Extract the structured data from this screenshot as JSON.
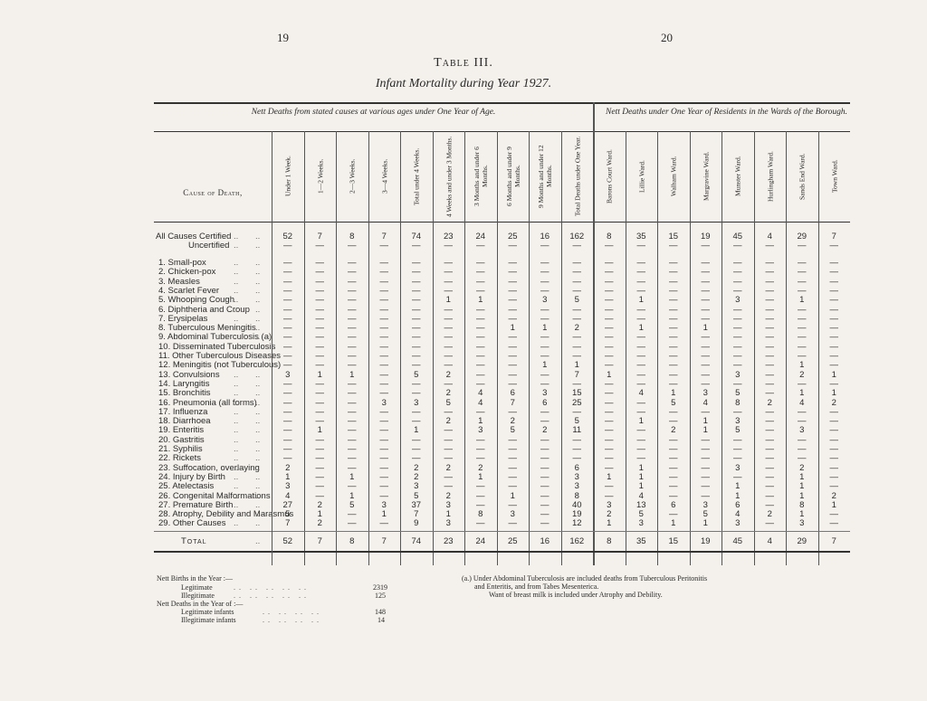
{
  "header": {
    "page_left": "19",
    "page_right": "20",
    "title": "Table III.",
    "subtitle": "Infant Mortality during Year 1927."
  },
  "table": {
    "group_left": "Nett Deaths from stated causes at various ages under One Year of Age.",
    "group_right": "Nett Deaths under One Year of Residents in the Wards of the Borough.",
    "cause_header": "Cause of Death,",
    "columns": [
      "Under 1 Week.",
      "1—2 Weeks.",
      "2—3 Weeks.",
      "3—4 Weeks.",
      "Total under 4 Weeks.",
      "4 Weeks and under 3 Months.",
      "3 Months and under 6 Months.",
      "6 Months and under 9 Months.",
      "9 Months and under 12 Months.",
      "Total Deaths under One Year.",
      "Barons Court Ward.",
      "Lillie Ward.",
      "Walham Ward.",
      "Margravine Ward.",
      "Munster Ward.",
      "Hurlingham Ward.",
      "Sands End Ward.",
      "Town Ward."
    ],
    "rows": [
      {
        "cause": "All Causes Certified",
        "cells": [
          52,
          7,
          8,
          7,
          74,
          23,
          24,
          25,
          16,
          162,
          8,
          35,
          15,
          19,
          45,
          4,
          29,
          7
        ]
      },
      {
        "cause": "Uncertified",
        "cells": [
          "—",
          "—",
          "—",
          "—",
          "—",
          "—",
          "—",
          "—",
          "—",
          "—",
          "—",
          "—",
          "—",
          "—",
          "—",
          "—",
          "—",
          "—"
        ]
      },
      {
        "cause": "1. Small-pox",
        "cells": [
          "—",
          "—",
          "—",
          "—",
          "—",
          "—",
          "—",
          "—",
          "—",
          "—",
          "—",
          "—",
          "—",
          "—",
          "—",
          "—",
          "—",
          "—"
        ]
      },
      {
        "cause": "2. Chicken-pox",
        "cells": [
          "—",
          "—",
          "—",
          "—",
          "—",
          "—",
          "—",
          "—",
          "—",
          "—",
          "—",
          "—",
          "—",
          "—",
          "—",
          "—",
          "—",
          "—"
        ]
      },
      {
        "cause": "3. Measles",
        "cells": [
          "—",
          "—",
          "—",
          "—",
          "—",
          "—",
          "—",
          "—",
          "—",
          "—",
          "—",
          "—",
          "—",
          "—",
          "—",
          "—",
          "—",
          "—"
        ]
      },
      {
        "cause": "4. Scarlet Fever",
        "cells": [
          "—",
          "—",
          "—",
          "—",
          "—",
          "—",
          "—",
          "—",
          "—",
          "—",
          "—",
          "—",
          "—",
          "—",
          "—",
          "—",
          "—",
          "—"
        ]
      },
      {
        "cause": "5. Whooping Cough",
        "cells": [
          "—",
          "—",
          "—",
          "—",
          "—",
          1,
          1,
          "—",
          3,
          5,
          "—",
          1,
          "—",
          "—",
          3,
          "—",
          1,
          "—"
        ]
      },
      {
        "cause": "6. Diphtheria and Croup",
        "cells": [
          "—",
          "—",
          "—",
          "—",
          "—",
          "—",
          "—",
          "—",
          "—",
          "—",
          "—",
          "—",
          "—",
          "—",
          "—",
          "—",
          "—",
          "—"
        ]
      },
      {
        "cause": "7. Erysipelas",
        "cells": [
          "—",
          "—",
          "—",
          "—",
          "—",
          "—",
          "—",
          "—",
          "—",
          "—",
          "—",
          "—",
          "—",
          "—",
          "—",
          "—",
          "—",
          "—"
        ]
      },
      {
        "cause": "8. Tuberculous Meningitis",
        "cells": [
          "—",
          "—",
          "—",
          "—",
          "—",
          "—",
          "—",
          1,
          1,
          2,
          "—",
          1,
          "—",
          1,
          "—",
          "—",
          "—",
          "—"
        ]
      },
      {
        "cause": "9. Abdominal Tuberculosis (a)",
        "cells": [
          "—",
          "—",
          "—",
          "—",
          "—",
          "—",
          "—",
          "—",
          "—",
          "—",
          "—",
          "—",
          "—",
          "—",
          "—",
          "—",
          "—",
          "—"
        ]
      },
      {
        "cause": "10. Disseminated Tuberculosis",
        "cells": [
          "—",
          "—",
          "—",
          "—",
          "—",
          "—",
          "—",
          "—",
          "—",
          "—",
          "—",
          "—",
          "—",
          "—",
          "—",
          "—",
          "—",
          "—"
        ]
      },
      {
        "cause": "11. Other Tuberculous Diseases",
        "cells": [
          "—",
          "—",
          "—",
          "—",
          "—",
          "—",
          "—",
          "—",
          "—",
          "—",
          "—",
          "—",
          "—",
          "—",
          "—",
          "—",
          "—",
          "—"
        ]
      },
      {
        "cause": "12. Meningitis (not Tuberculous)",
        "cells": [
          "—",
          "—",
          "—",
          "—",
          "—",
          "—",
          "—",
          "—",
          1,
          1,
          "—",
          "—",
          "—",
          "—",
          "—",
          "—",
          1,
          "—"
        ]
      },
      {
        "cause": "13. Convulsions",
        "cells": [
          3,
          1,
          1,
          "—",
          5,
          2,
          "—",
          "—",
          "—",
          7,
          1,
          "—",
          "—",
          "—",
          3,
          "—",
          2,
          1
        ]
      },
      {
        "cause": "14. Laryngitis",
        "cells": [
          "—",
          "—",
          "—",
          "—",
          "—",
          "—",
          "—",
          "—",
          "—",
          "—",
          "—",
          "—",
          "—",
          "—",
          "—",
          "—",
          "—",
          "—"
        ]
      },
      {
        "cause": "15. Bronchitis",
        "cells": [
          "—",
          "—",
          "—",
          "—",
          "—",
          2,
          4,
          6,
          3,
          15,
          "—",
          4,
          1,
          3,
          5,
          "—",
          1,
          1
        ]
      },
      {
        "cause": "16. Pneumonia (all forms)",
        "cells": [
          "—",
          "—",
          "—",
          3,
          3,
          5,
          4,
          7,
          6,
          25,
          "—",
          "—",
          5,
          4,
          8,
          2,
          4,
          2
        ]
      },
      {
        "cause": "17. Influenza",
        "cells": [
          "—",
          "—",
          "—",
          "—",
          "—",
          "—",
          "—",
          "—",
          "—",
          "—",
          "—",
          "—",
          "—",
          "—",
          "—",
          "—",
          "—",
          "—"
        ]
      },
      {
        "cause": "18. Diarrhoea",
        "cells": [
          "—",
          "—",
          "—",
          "—",
          "—",
          2,
          1,
          2,
          "—",
          5,
          "—",
          1,
          "—",
          1,
          3,
          "—",
          "—",
          "—"
        ]
      },
      {
        "cause": "19. Enteritis",
        "cells": [
          "—",
          1,
          "—",
          "—",
          1,
          "—",
          3,
          5,
          2,
          11,
          "—",
          "—",
          2,
          1,
          5,
          "—",
          3,
          "—"
        ]
      },
      {
        "cause": "20. Gastritis",
        "cells": [
          "—",
          "—",
          "—",
          "—",
          "—",
          "—",
          "—",
          "—",
          "—",
          "—",
          "—",
          "—",
          "—",
          "—",
          "—",
          "—",
          "—",
          "—"
        ]
      },
      {
        "cause": "21. Syphilis",
        "cells": [
          "—",
          "—",
          "—",
          "—",
          "—",
          "—",
          "—",
          "—",
          "—",
          "—",
          "—",
          "—",
          "—",
          "—",
          "—",
          "—",
          "—",
          "—"
        ]
      },
      {
        "cause": "22. Rickets",
        "cells": [
          "—",
          "—",
          "—",
          "—",
          "—",
          "—",
          "—",
          "—",
          "—",
          "—",
          "—",
          "—",
          "—",
          "—",
          "—",
          "—",
          "—",
          "—"
        ]
      },
      {
        "cause": "23. Suffocation, overlaying",
        "cells": [
          2,
          "—",
          "—",
          "—",
          2,
          2,
          2,
          "—",
          "—",
          6,
          "—",
          1,
          "—",
          "—",
          3,
          "—",
          2,
          "—"
        ]
      },
      {
        "cause": "24. Injury by Birth",
        "cells": [
          1,
          "—",
          1,
          "—",
          2,
          "—",
          1,
          "—",
          "—",
          3,
          1,
          1,
          "—",
          "—",
          "—",
          "—",
          1,
          "—"
        ]
      },
      {
        "cause": "25. Atelectasis",
        "cells": [
          3,
          "—",
          "—",
          "—",
          3,
          "—",
          "—",
          "—",
          "—",
          3,
          "—",
          1,
          "—",
          "—",
          1,
          "—",
          1,
          "—"
        ]
      },
      {
        "cause": "26. Congenital Malformations",
        "cells": [
          4,
          "—",
          1,
          "—",
          5,
          2,
          "—",
          1,
          "—",
          8,
          "—",
          4,
          "—",
          "—",
          1,
          "—",
          1,
          2
        ]
      },
      {
        "cause": "27. Premature Birth",
        "cells": [
          27,
          2,
          5,
          3,
          37,
          3,
          "—",
          "—",
          "—",
          40,
          3,
          13,
          6,
          3,
          6,
          "—",
          8,
          1
        ]
      },
      {
        "cause": "28. Atrophy, Debility and Marasmus",
        "cells": [
          5,
          1,
          "—",
          1,
          7,
          1,
          8,
          3,
          "—",
          19,
          2,
          5,
          "—",
          5,
          4,
          2,
          1,
          "—"
        ]
      },
      {
        "cause": "29. Other Causes",
        "cells": [
          7,
          2,
          "—",
          "—",
          9,
          3,
          "—",
          "—",
          "—",
          12,
          1,
          3,
          1,
          1,
          3,
          "—",
          3,
          "—"
        ]
      },
      {
        "cause": "Total",
        "cells": [
          52,
          7,
          8,
          7,
          74,
          23,
          24,
          25,
          16,
          162,
          8,
          35,
          15,
          19,
          45,
          4,
          29,
          7
        ]
      }
    ]
  },
  "notes": {
    "births_heading": "Nett Births in the Year :—",
    "legitimate": "Legitimate",
    "legitimate_value": 2319,
    "illegitimate": "Illegitimate",
    "illegitimate_value": 125,
    "deaths_heading": "Nett Deaths in the Year of :—",
    "legitimate_infants": "Legitimate infants",
    "legitimate_infants_value": 148,
    "illegitimate_infants": "Illegitimate infants",
    "illegitimate_infants_value": 14,
    "note_a": "(a.) Under Abdominal Tuberculosis are included deaths from Tuberculous Peritonitis",
    "note_a_cont": "and Enteritis, and from Tabes Mesenterica.",
    "note_b": "Want of breast milk is included under Atrophy and Debility."
  }
}
